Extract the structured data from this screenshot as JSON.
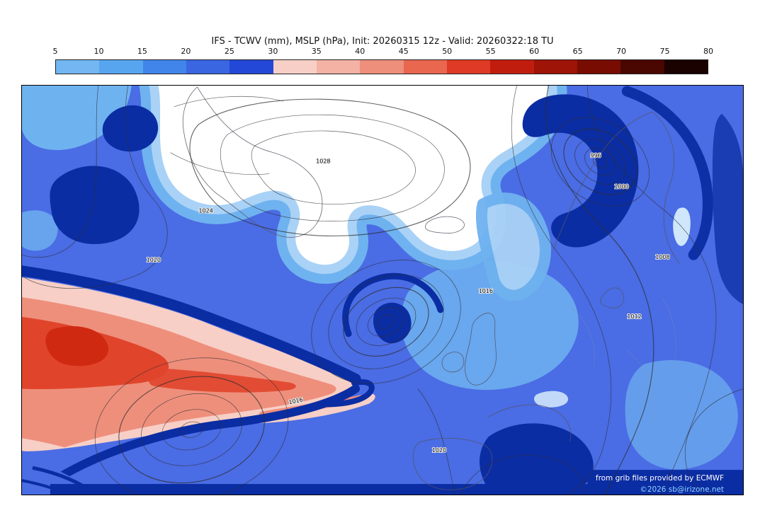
{
  "header": {
    "title": "IFS - TCWV (mm), MSLP (hPa), Init: 20260315 12z - Valid: 20260322:18 TU"
  },
  "colorbar": {
    "ticks": [
      "5",
      "10",
      "15",
      "20",
      "25",
      "30",
      "35",
      "40",
      "45",
      "50",
      "55",
      "60",
      "65",
      "70",
      "75",
      "80"
    ],
    "segment_colors": [
      "#73b6f1",
      "#57a5ef",
      "#4285ea",
      "#3a66e2",
      "#2347d6",
      "#f7cfc6",
      "#f3b2a3",
      "#ee8f7c",
      "#e9664f",
      "#de3a25",
      "#c11d0e",
      "#9e1407",
      "#780c02",
      "#4a0601",
      "#190200"
    ]
  },
  "chart_data": {
    "type": "heatmap",
    "title": "IFS - TCWV (mm), MSLP (hPa), Init: 20260315 12z - Valid: 20260322:18 TU",
    "model": "IFS",
    "fields": [
      "TCWV (mm)",
      "MSLP (hPa)"
    ],
    "init": "20260315 12z",
    "valid": "20260322:18 TU",
    "colorbar_ticks": [
      5,
      10,
      15,
      20,
      25,
      30,
      35,
      40,
      45,
      50,
      55,
      60,
      65,
      70,
      75,
      80
    ],
    "colorbar_range": [
      5,
      80
    ],
    "legend_position": "top"
  },
  "map": {
    "isobar_labels": [
      "1016",
      "1020",
      "1024",
      "1028",
      "1012",
      "1008",
      "1000",
      "996",
      "1016",
      "1020"
    ],
    "attribution_line1": "from grib files provided by ECMWF",
    "attribution_line2": "©2026 sb@irizone.net",
    "colors": {
      "base_blue": "#4a6ce4",
      "light_blue": "#6fb2f0",
      "pale_blue": "#a9d2f6",
      "white_region": "#ffffff",
      "navy": "#0b2da3",
      "pale_pink": "#f7cfc6",
      "salmon": "#ee8f7c",
      "red": "#e0452c",
      "deep_red": "#d02912"
    }
  }
}
